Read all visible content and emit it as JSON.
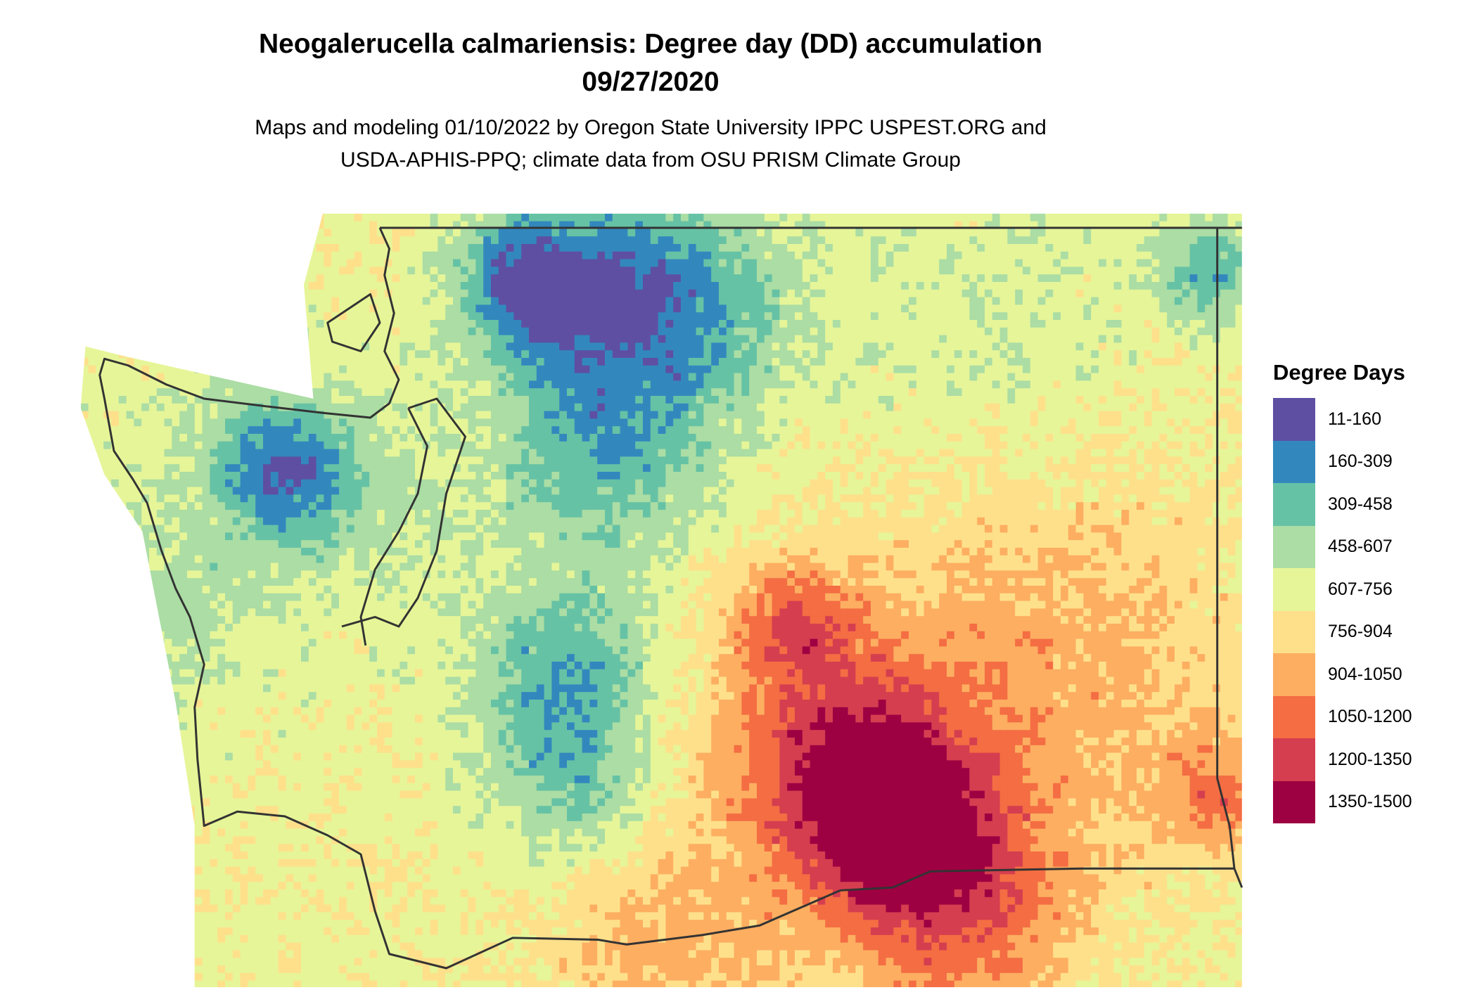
{
  "title": {
    "line1": "Neogalerucella calmariensis: Degree day (DD) accumulation",
    "line2": "09/27/2020"
  },
  "subtitle": {
    "line1": "Maps and modeling 01/10/2022 by Oregon State University IPPC USPEST.ORG and",
    "line2": "USDA-APHIS-PPQ; climate data from OSU PRISM Climate Group"
  },
  "legend": {
    "title": "Degree Days",
    "items": [
      {
        "label": "11-160",
        "color": "#5E4FA2"
      },
      {
        "label": "160-309",
        "color": "#3288BD"
      },
      {
        "label": "309-458",
        "color": "#66C2A5"
      },
      {
        "label": "458-607",
        "color": "#ABDDA4"
      },
      {
        "label": "607-756",
        "color": "#E6F598"
      },
      {
        "label": "756-904",
        "color": "#FEE08B"
      },
      {
        "label": "904-1050",
        "color": "#FDAE61"
      },
      {
        "label": "1050-1200",
        "color": "#F46D43"
      },
      {
        "label": "1200-1350",
        "color": "#D53E4F"
      },
      {
        "label": "1350-1500",
        "color": "#9E0142"
      }
    ]
  },
  "map": {
    "region": "Washington State",
    "boundary_color": "#333333"
  }
}
